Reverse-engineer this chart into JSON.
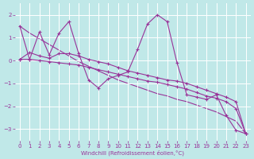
{
  "xlabel": "Windchill (Refroidissement éolien,°C)",
  "background_color": "#c0e8e8",
  "grid_color": "#ffffff",
  "line_color": "#993399",
  "x_hours": [
    0,
    1,
    2,
    3,
    4,
    5,
    6,
    7,
    8,
    9,
    10,
    11,
    12,
    13,
    14,
    15,
    16,
    17,
    18,
    19,
    20,
    21,
    22,
    23
  ],
  "series_spiky": [
    1.5,
    0.05,
    1.25,
    0.25,
    1.2,
    1.7,
    0.3,
    -0.85,
    -1.2,
    -0.8,
    -0.65,
    -0.5,
    0.5,
    1.6,
    2.0,
    1.7,
    -0.1,
    -1.5,
    -1.6,
    -1.7,
    -1.5,
    -2.4,
    -3.05,
    -3.2
  ],
  "series_trend1": [
    0.05,
    0.35,
    0.2,
    0.1,
    0.3,
    0.3,
    0.2,
    0.05,
    -0.05,
    -0.15,
    -0.3,
    -0.45,
    -0.55,
    -0.65,
    -0.75,
    -0.85,
    -0.9,
    -1.0,
    -1.15,
    -1.3,
    -1.45,
    -1.6,
    -1.8,
    -3.2
  ],
  "series_trend2": [
    0.05,
    0.05,
    0.0,
    -0.05,
    -0.1,
    -0.15,
    -0.2,
    -0.3,
    -0.4,
    -0.5,
    -0.6,
    -0.7,
    -0.8,
    -0.9,
    -0.95,
    -1.05,
    -1.15,
    -1.25,
    -1.4,
    -1.55,
    -1.65,
    -1.8,
    -2.1,
    -3.2
  ],
  "series_straight": [
    1.5,
    1.2,
    0.95,
    0.7,
    0.45,
    0.2,
    -0.05,
    -0.25,
    -0.45,
    -0.65,
    -0.85,
    -1.0,
    -1.15,
    -1.3,
    -1.45,
    -1.55,
    -1.7,
    -1.8,
    -1.95,
    -2.1,
    -2.25,
    -2.45,
    -2.65,
    -3.2
  ],
  "ylim": [
    -3.5,
    2.5
  ],
  "yticks": [
    -3,
    -2,
    -1,
    0,
    1,
    2
  ],
  "xlim": [
    -0.5,
    23.5
  ]
}
